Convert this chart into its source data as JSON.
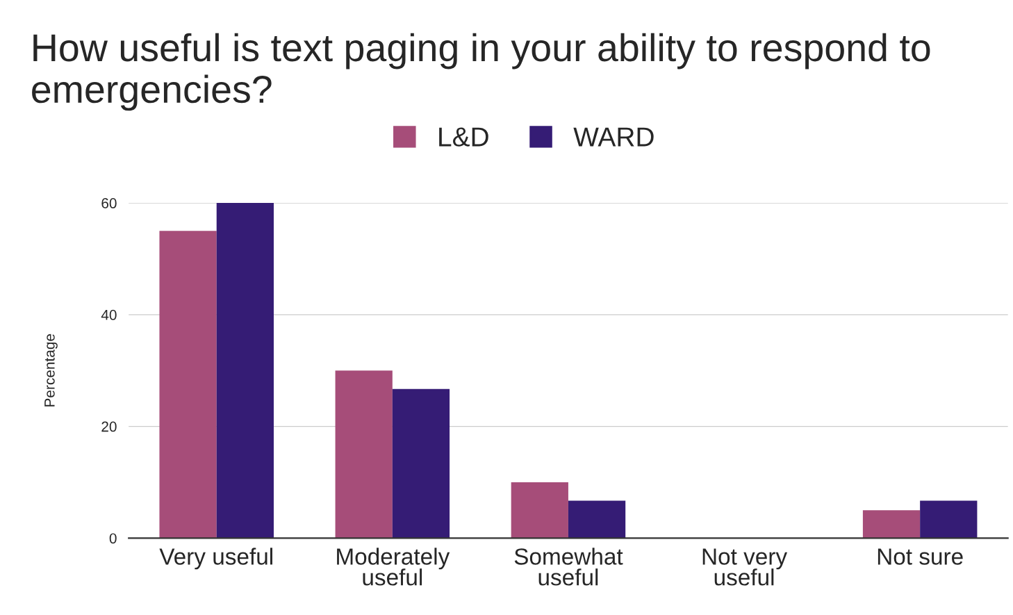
{
  "chart_data": {
    "type": "bar",
    "title": "How useful is text paging in your ability to respond to emergencies?",
    "ylabel": "Percentage",
    "categories": [
      "Very useful",
      "Moderately\nuseful",
      "Somewhat\nuseful",
      "Not very\nuseful",
      "Not sure"
    ],
    "series": [
      {
        "name": "L&D",
        "color": "#a64d79",
        "values": [
          55,
          30,
          10,
          0,
          5
        ]
      },
      {
        "name": "WARD",
        "color": "#351c75",
        "values": [
          60,
          26.7,
          6.7,
          0,
          6.7
        ]
      }
    ],
    "ylim": [
      0,
      60
    ],
    "yticks": [
      0,
      20,
      40,
      60
    ],
    "grid": "y",
    "legend": "top"
  }
}
